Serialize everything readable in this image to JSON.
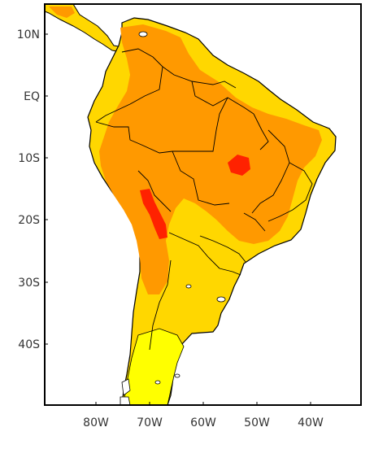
{
  "map": {
    "lat_labels": [
      "10N",
      "EQ",
      "10S",
      "20S",
      "30S",
      "40S"
    ],
    "lon_labels": [
      "80W",
      "70W",
      "60W",
      "50W",
      "40W"
    ],
    "fill_colors": {
      "level_1": "#ffff00",
      "level_2": "#ffd700",
      "level_3": "#ff9900",
      "level_4": "#ff6600",
      "level_5": "#ff0000"
    }
  }
}
